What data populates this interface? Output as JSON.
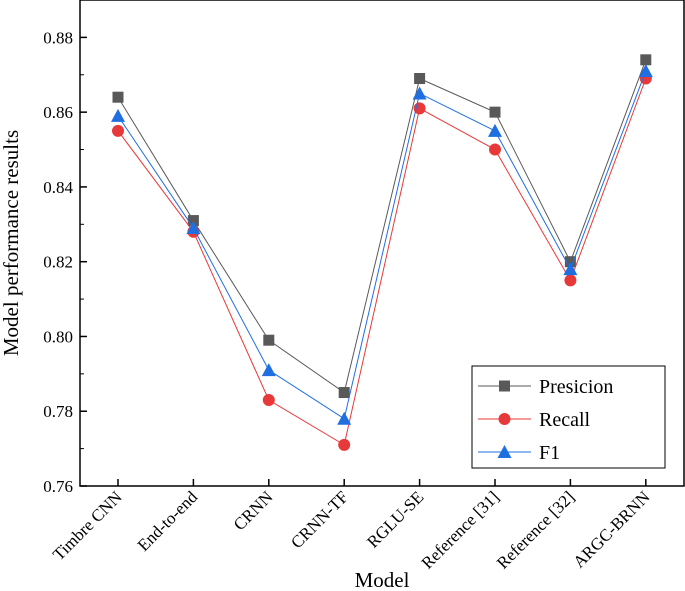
{
  "chart_data": {
    "type": "line",
    "title": "",
    "xlabel": "Model",
    "ylabel": "Model performance results",
    "ylim": [
      0.76,
      0.89
    ],
    "yticks": [
      0.76,
      0.78,
      0.8,
      0.82,
      0.84,
      0.86,
      0.88
    ],
    "ytick_labels": [
      "0.76",
      "0.78",
      "0.80",
      "0.82",
      "0.84",
      "0.86",
      "0.88"
    ],
    "categories": [
      "Timbre CNN",
      "End-to-end",
      "CRNN",
      "CRNN-TF",
      "RGLU-SE",
      "Reference [31]",
      "Reference [32]",
      "ARGC-BRNN"
    ],
    "legend_position": "bottom-right",
    "grid": false,
    "series": [
      {
        "name": "Presicion",
        "color": "#595959",
        "marker": "square",
        "values": [
          0.864,
          0.831,
          0.799,
          0.785,
          0.869,
          0.86,
          0.82,
          0.874
        ]
      },
      {
        "name": "Recall",
        "color": "#e8393a",
        "marker": "circle",
        "values": [
          0.855,
          0.828,
          0.783,
          0.771,
          0.861,
          0.85,
          0.815,
          0.869
        ]
      },
      {
        "name": "F1",
        "color": "#1f6fe0",
        "marker": "triangle",
        "values": [
          0.859,
          0.829,
          0.791,
          0.778,
          0.865,
          0.855,
          0.818,
          0.871
        ]
      }
    ]
  }
}
